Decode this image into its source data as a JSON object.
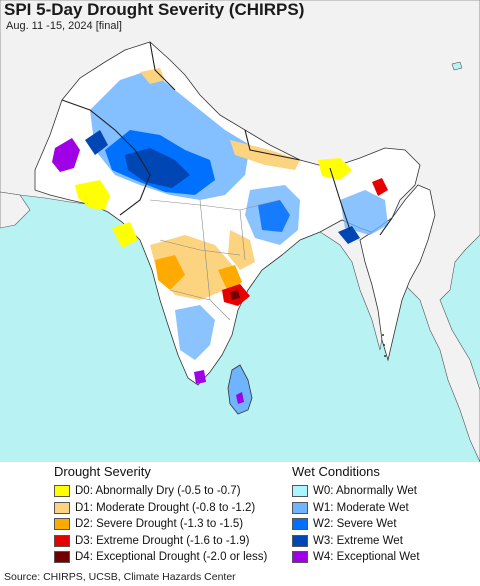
{
  "title": "SPI 5-Day Drought Severity (CHIRPS)",
  "subtitle": "Aug. 11 -15, 2024 [final]",
  "legend": {
    "drought": {
      "heading": "Drought Severity",
      "items": [
        {
          "label": "D0: Abnormally Dry (-0.5 to -0.7)",
          "color": "#ffff00"
        },
        {
          "label": "D1: Moderate Drought (-0.8 to -1.2)",
          "color": "#fcd37f"
        },
        {
          "label": "D2: Severe Drought (-1.3 to -1.5)",
          "color": "#ffaa00"
        },
        {
          "label": "D3: Extreme Drought (-1.6 to -1.9)",
          "color": "#e60000"
        },
        {
          "label": "D4: Exceptional Drought (-2.0 or less)",
          "color": "#730000"
        }
      ]
    },
    "wet": {
      "heading": "Wet Conditions",
      "items": [
        {
          "label": "W0: Abnormally Wet",
          "color": "#aaf5ff"
        },
        {
          "label": "W1: Moderate Wet",
          "color": "#6eb4ff"
        },
        {
          "label": "W2: Severe Wet",
          "color": "#0070ff"
        },
        {
          "label": "W3: Extreme Wet",
          "color": "#0046b4"
        },
        {
          "label": "W4: Exceptional Wet",
          "color": "#a000e6"
        }
      ]
    }
  },
  "source": "Source: CHIRPS, UCSB, Climate Hazards Center",
  "map_colors": {
    "ocean": "#b8f2f2",
    "outside_land": "#f2f2f2",
    "normal_land": "#ffffff",
    "borders": "#333333"
  }
}
